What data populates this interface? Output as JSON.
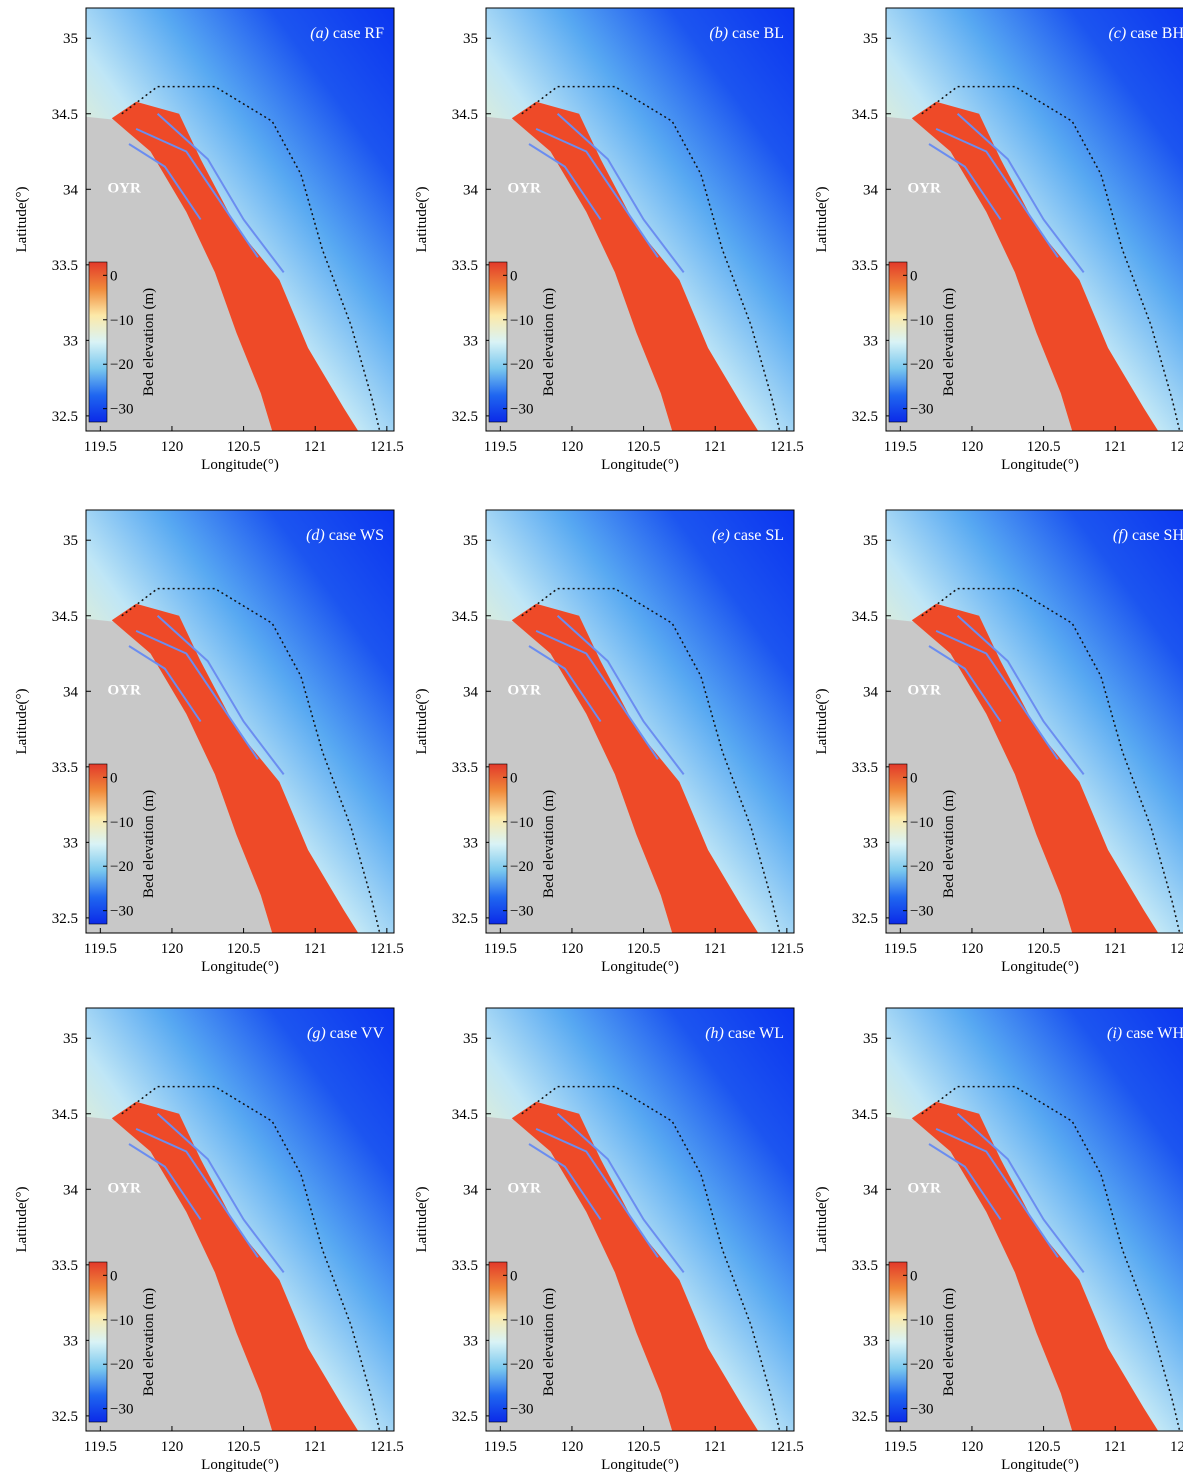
{
  "figure": {
    "x_axis_label": "Longitude(°)",
    "y_axis_label": "Latitude(°)",
    "x_ticks": [
      "119.5",
      "120",
      "120.5",
      "121",
      "121.5"
    ],
    "y_ticks": [
      "35",
      "34.5",
      "34",
      "33.5",
      "33",
      "32.5"
    ],
    "x_range": [
      119.4,
      121.55
    ],
    "y_range": [
      32.4,
      35.2
    ],
    "place_label": "OYR",
    "colorbar": {
      "label": "Bed elevation (m)",
      "ticks": [
        "0",
        "−10",
        "−20",
        "−30"
      ],
      "tick_values": [
        0,
        -10,
        -20,
        -30
      ],
      "range": [
        3,
        -33
      ],
      "colors": [
        "#e2392a",
        "#f08a3a",
        "#fde9a8",
        "#d9f3f6",
        "#79c7ee",
        "#1f66f0",
        "#0b2ae8"
      ]
    },
    "colors": {
      "deep_water": "#0b35f0",
      "land": "#c8c8c8",
      "tidal_flat": "#ee4a28",
      "channel": "#6b8df0"
    },
    "panels": [
      {
        "id": "a",
        "letter": "(a)",
        "case": "case RF"
      },
      {
        "id": "b",
        "letter": "(b)",
        "case": "case BL"
      },
      {
        "id": "c",
        "letter": "(c)",
        "case": "case BH"
      },
      {
        "id": "d",
        "letter": "(d)",
        "case": "case WS"
      },
      {
        "id": "e",
        "letter": "(e)",
        "case": "case SL"
      },
      {
        "id": "f",
        "letter": "(f)",
        "case": "case SH"
      },
      {
        "id": "g",
        "letter": "(g)",
        "case": "case VV"
      },
      {
        "id": "h",
        "letter": "(h)",
        "case": "case WL"
      },
      {
        "id": "i",
        "letter": "(i)",
        "case": "case WH"
      }
    ]
  }
}
